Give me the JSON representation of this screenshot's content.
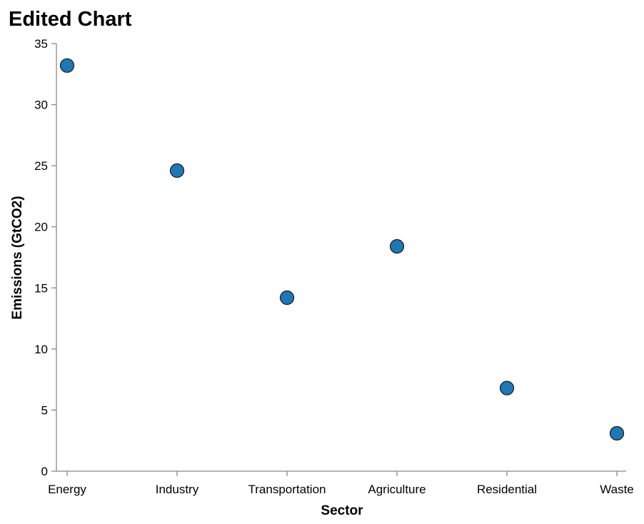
{
  "chart_data": {
    "type": "scatter",
    "title": "Edited Chart",
    "xlabel": "Sector",
    "ylabel": "Emissions (GtCO2)",
    "categories": [
      "Energy",
      "Industry",
      "Transportation",
      "Agriculture",
      "Residential",
      "Waste"
    ],
    "values": [
      33.2,
      24.6,
      14.2,
      18.4,
      6.8,
      3.1
    ],
    "ylim": [
      0,
      35
    ],
    "yticks": [
      0,
      5,
      10,
      15,
      20,
      25,
      30,
      35
    ],
    "grid": false,
    "point_color": "#1f77b4"
  }
}
